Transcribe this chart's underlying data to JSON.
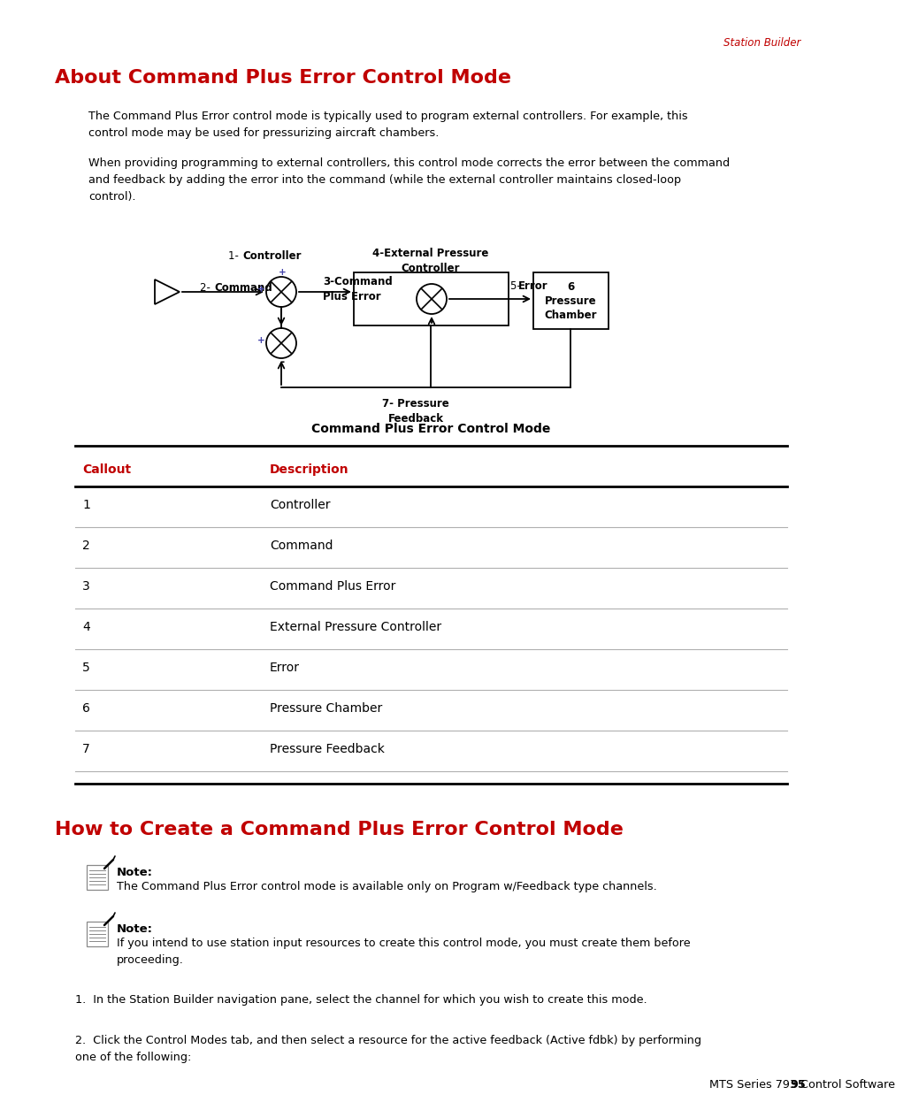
{
  "page_bg": "#ffffff",
  "header_text": "Station Builder",
  "header_color": "#c00000",
  "title1": "About Command Plus Error Control Mode",
  "title1_color": "#c00000",
  "para1": "The Command Plus Error control mode is typically used to program external controllers. For example, this\ncontrol mode may be used for pressurizing aircraft chambers.",
  "para2": "When providing programming to external controllers, this control mode corrects the error between the command\nand feedback by adding the error into the command (while the external controller maintains closed-loop\ncontrol).",
  "diagram_caption": "Command Plus Error Control Mode",
  "table_header_callout": "Callout",
  "table_header_desc": "Description",
  "table_header_color": "#c00000",
  "table_rows": [
    [
      "1",
      "Controller"
    ],
    [
      "2",
      "Command"
    ],
    [
      "3",
      "Command Plus Error"
    ],
    [
      "4",
      "External Pressure Controller"
    ],
    [
      "5",
      "Error"
    ],
    [
      "6",
      "Pressure Chamber"
    ],
    [
      "7",
      "Pressure Feedback"
    ]
  ],
  "title2": "How to Create a Command Plus Error Control Mode",
  "title2_color": "#c00000",
  "note1_bold": "Note:",
  "note1_text": "The Command Plus Error control mode is available only on Program w/Feedback type channels.",
  "note2_bold": "Note:",
  "note2_text": "If you intend to use station input resources to create this control mode, you must create them before\nproceeding.",
  "step1": "In the Station Builder navigation pane, select the channel for which you wish to create this mode.",
  "step2": "Click the Control Modes tab, and then select a resource for the active feedback (Active fdbk) by performing\none of the following:",
  "footer_normal": "MTS Series 793 Control Software ",
  "footer_bold": "95",
  "text_color": "#000000"
}
